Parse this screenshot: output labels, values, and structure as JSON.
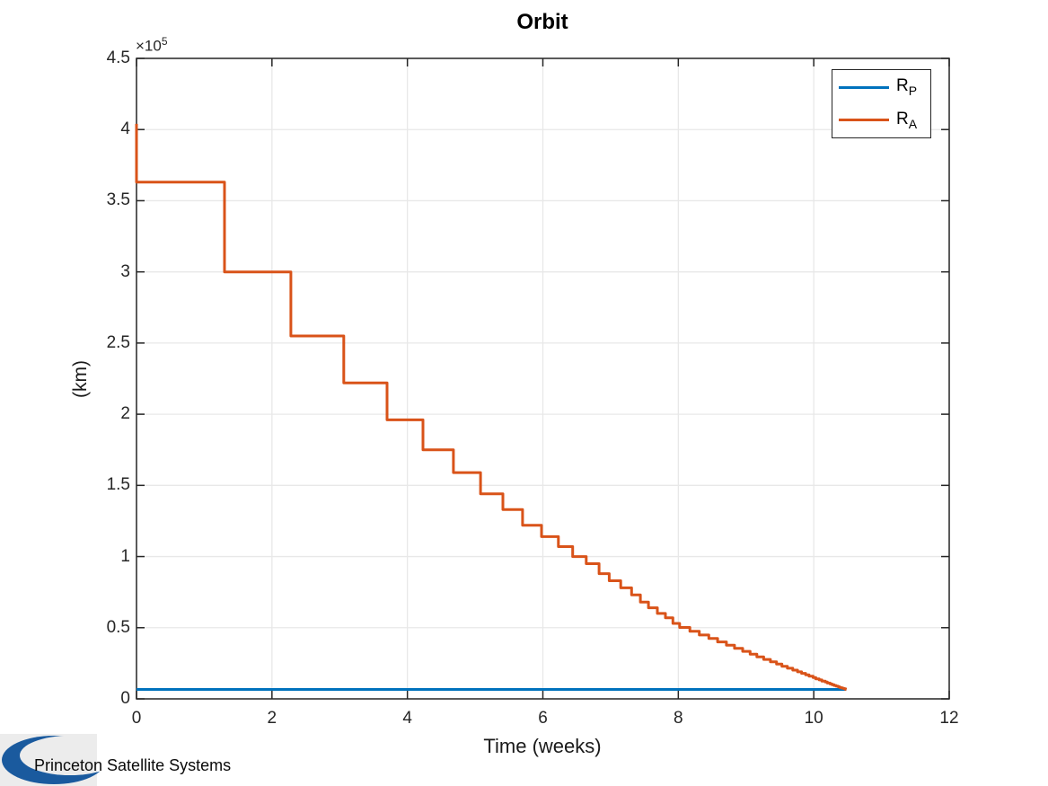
{
  "chart": {
    "title": "Orbit",
    "xlabel": "Time (weeks)",
    "ylabel": "(km)",
    "y_scale": {
      "base": "×10",
      "exp": "5"
    }
  },
  "legend": {
    "position": "northeast",
    "items": [
      {
        "main": "R",
        "sub": "P",
        "series": "R_P",
        "color": "#0072BD"
      },
      {
        "main": "R",
        "sub": "A",
        "series": "R_A",
        "color": "#D95319"
      }
    ]
  },
  "logo": {
    "text": "Princeton Satellite Systems",
    "crescent_color": "#1a5a9e",
    "bg_color": "#ececec"
  },
  "colors": {
    "axis": "#262626",
    "grid": "#e8e8e8",
    "background": "#ffffff",
    "rp_line": "#0072BD",
    "ra_line": "#D95319"
  },
  "chart_data": {
    "type": "line",
    "title": "Orbit",
    "xlabel": "Time (weeks)",
    "ylabel": "(km)",
    "y_units": "km, values in 1e5",
    "grid": true,
    "legend_position": "northeast",
    "xlim": [
      0,
      12
    ],
    "ylim_1e5": [
      0,
      4.5
    ],
    "x_ticks": [
      0,
      2,
      4,
      6,
      8,
      10,
      12
    ],
    "x_tick_labels": [
      "0",
      "2",
      "4",
      "6",
      "8",
      "10",
      "12"
    ],
    "y_ticks_1e5": [
      0,
      0.5,
      1,
      1.5,
      2,
      2.5,
      3,
      3.5,
      4,
      4.5
    ],
    "y_tick_labels": [
      "0",
      "0.5",
      "1",
      "1.5",
      "2",
      "2.5",
      "3",
      "3.5",
      "4",
      "4.5"
    ],
    "series": [
      {
        "name": "R_P",
        "type": "line",
        "color": "#0072BD",
        "points_t_r1e5": [
          [
            0,
            0.066
          ],
          [
            10.48,
            0.066
          ]
        ]
      },
      {
        "name": "R_A",
        "type": "stairs",
        "color": "#D95319",
        "start_t_r1e5": [
          0,
          4.04
        ],
        "steps_t_r1e5": [
          [
            1.3,
            3.63
          ],
          [
            2.28,
            3.0
          ],
          [
            3.06,
            2.55
          ],
          [
            3.7,
            2.22
          ],
          [
            4.23,
            1.96
          ],
          [
            4.68,
            1.75
          ],
          [
            5.08,
            1.59
          ],
          [
            5.41,
            1.44
          ],
          [
            5.7,
            1.33
          ],
          [
            5.98,
            1.22
          ],
          [
            6.23,
            1.14
          ],
          [
            6.44,
            1.07
          ],
          [
            6.64,
            1.0
          ],
          [
            6.83,
            0.95
          ],
          [
            6.98,
            0.88
          ],
          [
            7.15,
            0.83
          ],
          [
            7.31,
            0.78
          ],
          [
            7.44,
            0.73
          ],
          [
            7.56,
            0.68
          ],
          [
            7.69,
            0.64
          ],
          [
            7.81,
            0.6
          ],
          [
            7.92,
            0.57
          ],
          [
            8.02,
            0.53
          ],
          [
            8.17,
            0.502
          ],
          [
            8.31,
            0.475
          ],
          [
            8.45,
            0.449
          ],
          [
            8.58,
            0.424
          ],
          [
            8.71,
            0.4
          ],
          [
            8.83,
            0.377
          ],
          [
            8.95,
            0.355
          ],
          [
            9.06,
            0.334
          ],
          [
            9.16,
            0.314
          ],
          [
            9.26,
            0.295
          ],
          [
            9.36,
            0.277
          ],
          [
            9.45,
            0.26
          ],
          [
            9.53,
            0.244
          ],
          [
            9.61,
            0.229
          ],
          [
            9.69,
            0.215
          ],
          [
            9.76,
            0.202
          ],
          [
            9.82,
            0.19
          ],
          [
            9.88,
            0.179
          ],
          [
            9.93,
            0.169
          ],
          [
            9.99,
            0.159
          ],
          [
            10.03,
            0.15
          ],
          [
            10.08,
            0.141
          ],
          [
            10.12,
            0.133
          ],
          [
            10.17,
            0.125
          ],
          [
            10.2,
            0.118
          ],
          [
            10.24,
            0.111
          ],
          [
            10.27,
            0.105
          ],
          [
            10.3,
            0.099
          ],
          [
            10.33,
            0.094
          ],
          [
            10.36,
            0.089
          ],
          [
            10.38,
            0.085
          ],
          [
            10.4,
            0.081
          ],
          [
            10.42,
            0.078
          ],
          [
            10.44,
            0.075
          ],
          [
            10.45,
            0.073
          ],
          [
            10.47,
            0.071
          ],
          [
            10.48,
            0.066
          ]
        ]
      }
    ]
  }
}
